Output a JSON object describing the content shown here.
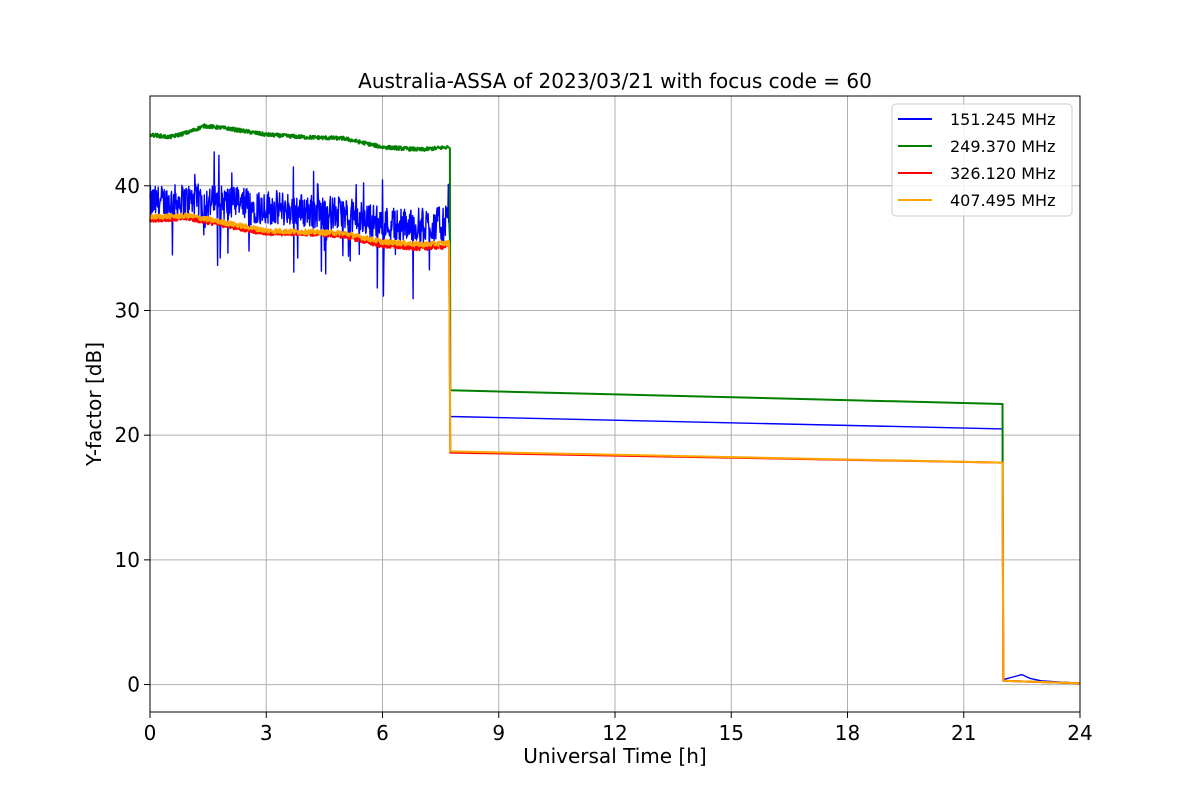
{
  "chart_data": {
    "type": "line",
    "title": "Australia-ASSA of 2023/03/21 with focus code = 60",
    "xlabel": "Universal Time [h]",
    "ylabel": "Y-factor [dB]",
    "xlim": [
      0,
      24
    ],
    "ylim": [
      -2.2,
      47.2
    ],
    "xticks": [
      0,
      3,
      6,
      9,
      12,
      15,
      18,
      21,
      24
    ],
    "yticks": [
      0,
      10,
      20,
      30,
      40
    ],
    "grid": true,
    "legend_position": "top-right",
    "series": [
      {
        "name": "151.245 MHz",
        "color": "#0000ff",
        "noise": 1.4,
        "x": [
          0,
          1.0,
          2.0,
          3.0,
          4.0,
          5.0,
          6.0,
          7.0,
          7.72,
          7.74,
          7.75,
          22.0,
          22.02,
          22.5,
          22.7,
          23.0,
          24.0
        ],
        "y": [
          38.6,
          38.8,
          38.6,
          38.3,
          38.0,
          37.7,
          37.0,
          36.8,
          37.0,
          35.0,
          21.5,
          20.5,
          0.4,
          0.8,
          0.5,
          0.3,
          0.1
        ]
      },
      {
        "name": "249.370 MHz",
        "color": "#008000",
        "noise": 0.15,
        "x": [
          0,
          0.5,
          1.0,
          1.4,
          2.0,
          3.0,
          4.0,
          5.0,
          6.0,
          7.0,
          7.7,
          7.74,
          7.75,
          22.0,
          22.02,
          24.0
        ],
        "y": [
          44.1,
          43.9,
          44.3,
          44.8,
          44.6,
          44.1,
          43.9,
          43.8,
          43.1,
          42.9,
          43.1,
          43.0,
          23.6,
          22.5,
          0.3,
          0.1
        ]
      },
      {
        "name": "326.120 MHz",
        "color": "#ff0000",
        "noise": 0.2,
        "x": [
          0,
          1.0,
          2.0,
          3.0,
          4.0,
          5.0,
          6.0,
          7.0,
          7.72,
          7.75,
          22.0,
          22.02,
          24.0
        ],
        "y": [
          37.3,
          37.4,
          36.8,
          36.2,
          36.2,
          36.0,
          35.2,
          35.0,
          35.2,
          18.6,
          17.8,
          0.3,
          0.1
        ]
      },
      {
        "name": "407.495 MHz",
        "color": "#ffa500",
        "noise": 0.2,
        "x": [
          0,
          1.0,
          2.0,
          3.0,
          4.0,
          5.0,
          6.0,
          7.0,
          7.72,
          7.75,
          22.0,
          22.02,
          24.0
        ],
        "y": [
          37.5,
          37.6,
          37.0,
          36.4,
          36.3,
          36.2,
          35.5,
          35.3,
          35.4,
          18.7,
          17.8,
          0.3,
          0.1
        ]
      }
    ]
  }
}
